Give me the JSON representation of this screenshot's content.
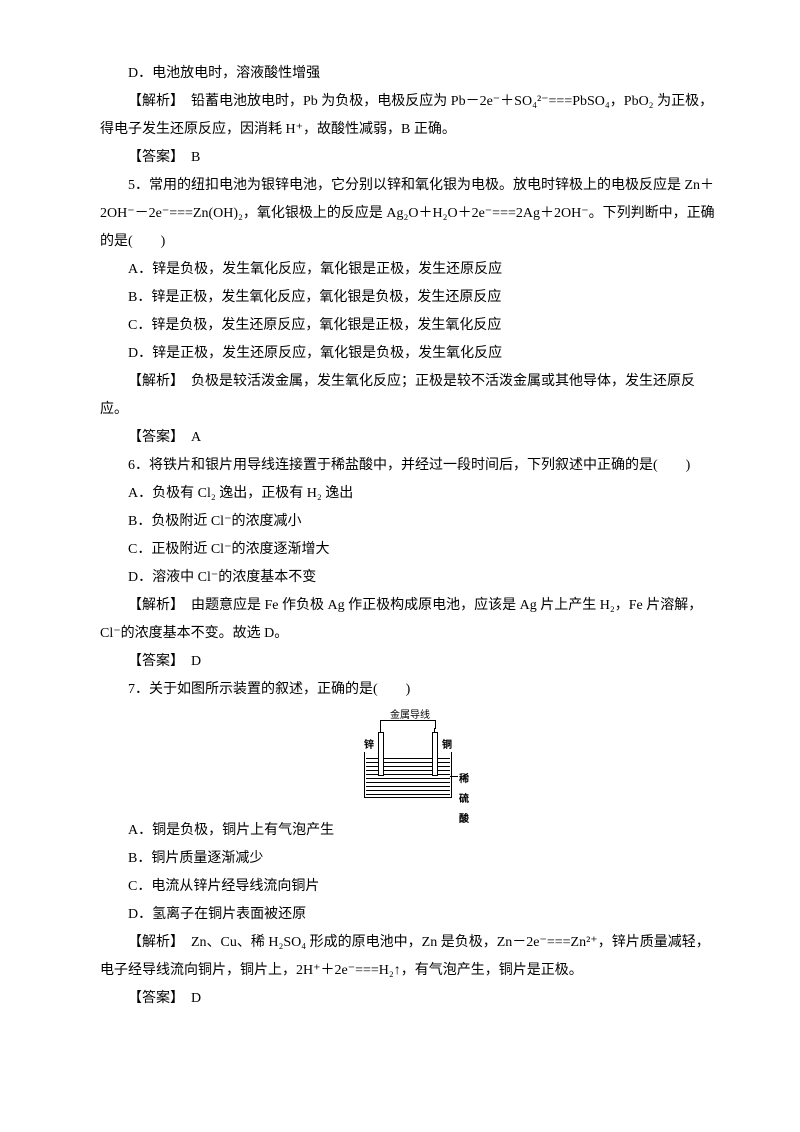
{
  "q4": {
    "optD": "D．电池放电时，溶液酸性增强",
    "expl": "【解析】　铅蓄电池放电时，Pb 为负极，电极反应为 Pb－2e⁻＋SO₄²⁻===PbSO₄，PbO₂ 为正极，得电子发生还原反应，因消耗 H⁺，故酸性减弱，B 正确。",
    "ans": "【答案】　B"
  },
  "q5": {
    "stem": "5．常用的纽扣电池为银锌电池，它分别以锌和氧化银为电极。放电时锌极上的电极反应是 Zn＋2OH⁻－2e⁻===Zn(OH)₂，氧化银极上的反应是 Ag₂O＋H₂O＋2e⁻===2Ag＋2OH⁻。下列判断中，正确的是(　　)",
    "A": "A．锌是负极，发生氧化反应，氧化银是正极，发生还原反应",
    "B": "B．锌是正极，发生氧化反应，氧化银是负极，发生还原反应",
    "C": "C．锌是负极，发生还原反应，氧化银是正极，发生氧化反应",
    "D": "D．锌是正极，发生还原反应，氧化银是负极，发生氧化反应",
    "expl": "【解析】　负极是较活泼金属，发生氧化反应；正极是较不活泼金属或其他导体，发生还原反应。",
    "ans": "【答案】　A"
  },
  "q6": {
    "stem": "6．将铁片和银片用导线连接置于稀盐酸中，并经过一段时间后，下列叙述中正确的是(　　)",
    "A": "A．负极有 Cl₂ 逸出，正极有 H₂ 逸出",
    "B": "B．负极附近 Cl⁻的浓度减小",
    "C": "C．正极附近 Cl⁻的浓度逐渐增大",
    "D": "D．溶液中 Cl⁻的浓度基本不变",
    "expl": "【解析】　由题意应是 Fe 作负极 Ag 作正极构成原电池，应该是 Ag 片上产生 H₂，Fe 片溶解，Cl⁻的浓度基本不变。故选 D。",
    "ans": "【答案】　D"
  },
  "q7": {
    "stem": "7．关于如图所示装置的叙述，正确的是(　　)",
    "fig": {
      "topLabel": "金属导线",
      "leftElec": "锌",
      "rightElec": "铜",
      "solution": "稀硫酸"
    },
    "A": "A．铜是负极，铜片上有气泡产生",
    "B": "B．铜片质量逐渐减少",
    "C": "C．电流从锌片经导线流向铜片",
    "D": "D．氢离子在铜片表面被还原",
    "expl": "【解析】　Zn、Cu、稀 H₂SO₄ 形成的原电池中，Zn 是负极，Zn－2e⁻===Zn²⁺，锌片质量减轻，电子经导线流向铜片，铜片上，2H⁺＋2e⁻===H₂↑，有气泡产生，铜片是正极。",
    "ans": "【答案】　D"
  }
}
